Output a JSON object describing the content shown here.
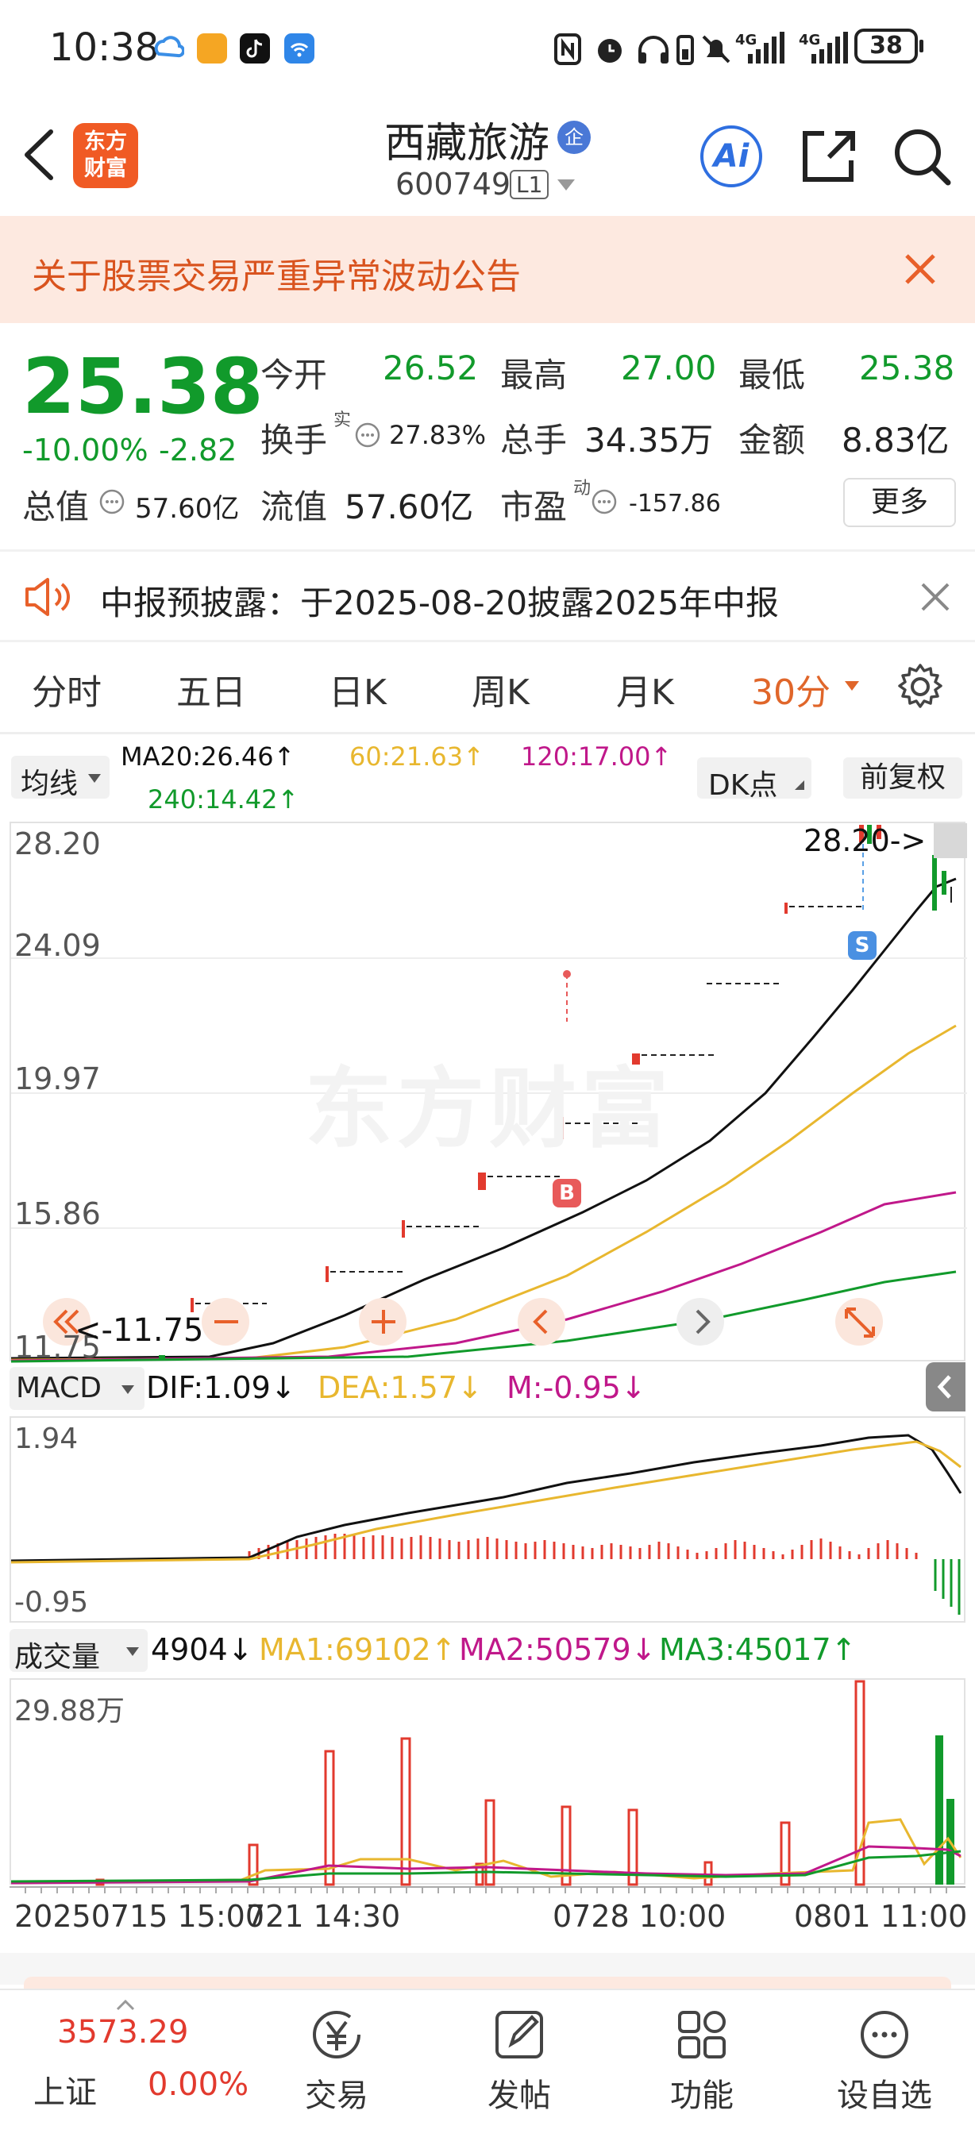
{
  "status_bar": {
    "time": "10:38",
    "battery": "38",
    "signal_a": "4G",
    "signal_b": "4G"
  },
  "header": {
    "title": "西藏旅游",
    "title_badge": "企",
    "code": "600749",
    "level": "L1",
    "logo_line1": "东方",
    "logo_line2": "财富",
    "ai_label": "Ai"
  },
  "notice": {
    "text": "关于股票交易严重异常波动公告"
  },
  "quote": {
    "price": "25.38",
    "change_pct": "-10.00%",
    "change": "-2.82",
    "open_label": "今开",
    "open": "26.52",
    "high_label": "最高",
    "high": "27.00",
    "low_label": "最低",
    "low": "25.38",
    "turnover_label": "换手",
    "turnover_sup": "实",
    "turnover": "27.83%",
    "volume_label": "总手",
    "volume": "34.35万",
    "amount_label": "金额",
    "amount": "8.83亿",
    "mktcap_label": "总值",
    "mktcap": "57.60亿",
    "float_label": "流值",
    "float": "57.60亿",
    "pe_label": "市盈",
    "pe_sup": "动",
    "pe": "-157.86",
    "more_label": "更多"
  },
  "announcement": {
    "text": "中报预披露：于2025-08-20披露2025年中报"
  },
  "tabs": [
    {
      "label": "分时"
    },
    {
      "label": "五日"
    },
    {
      "label": "日K"
    },
    {
      "label": "周K"
    },
    {
      "label": "月K"
    },
    {
      "label": "30分",
      "active": true
    }
  ],
  "ma_bar": {
    "selector": "均线",
    "ma20": "MA20:26.46↑",
    "ma60": "60:21.63↑",
    "ma120": "120:17.00↑",
    "ma240": "240:14.42↑",
    "dk_button": "DK点",
    "adjust_button": "前复权"
  },
  "main_chart": {
    "y_ticks": [
      "28.20",
      "24.09",
      "19.97",
      "15.86",
      "11.75"
    ],
    "max_label": "28.20->",
    "min_label": "<-11.75",
    "watermark": "东方财富",
    "b_marker": "B",
    "s_marker": "S",
    "colors": {
      "ma20": "#111111",
      "ma60": "#e8b72f",
      "ma120": "#c0188a",
      "ma240": "#119a2b"
    }
  },
  "macd": {
    "selector": "MACD",
    "dif": "DIF:1.09↓",
    "dea": "DEA:1.57↓",
    "m": "M:-0.95↓",
    "y_top": "1.94",
    "y_bottom": "-0.95"
  },
  "volume": {
    "selector": "成交量",
    "value": "4904↓",
    "ma1": "MA1:69102↑",
    "ma2": "MA2:50579↓",
    "ma3": "MA3:45017↑",
    "y_top": "29.88万"
  },
  "x_axis": [
    "20250715 15:00",
    "721 14:30",
    "0728 10:00",
    "0801 11:00"
  ],
  "bottom_bar": {
    "index_value": "3573.29",
    "index_name": "上证",
    "index_change": "0.00%",
    "items": [
      {
        "label": "交易",
        "icon": "yen-icon"
      },
      {
        "label": "发帖",
        "icon": "edit-icon"
      },
      {
        "label": "功能",
        "icon": "grid-icon"
      },
      {
        "label": "设自选",
        "icon": "add-favorite-icon"
      }
    ]
  }
}
